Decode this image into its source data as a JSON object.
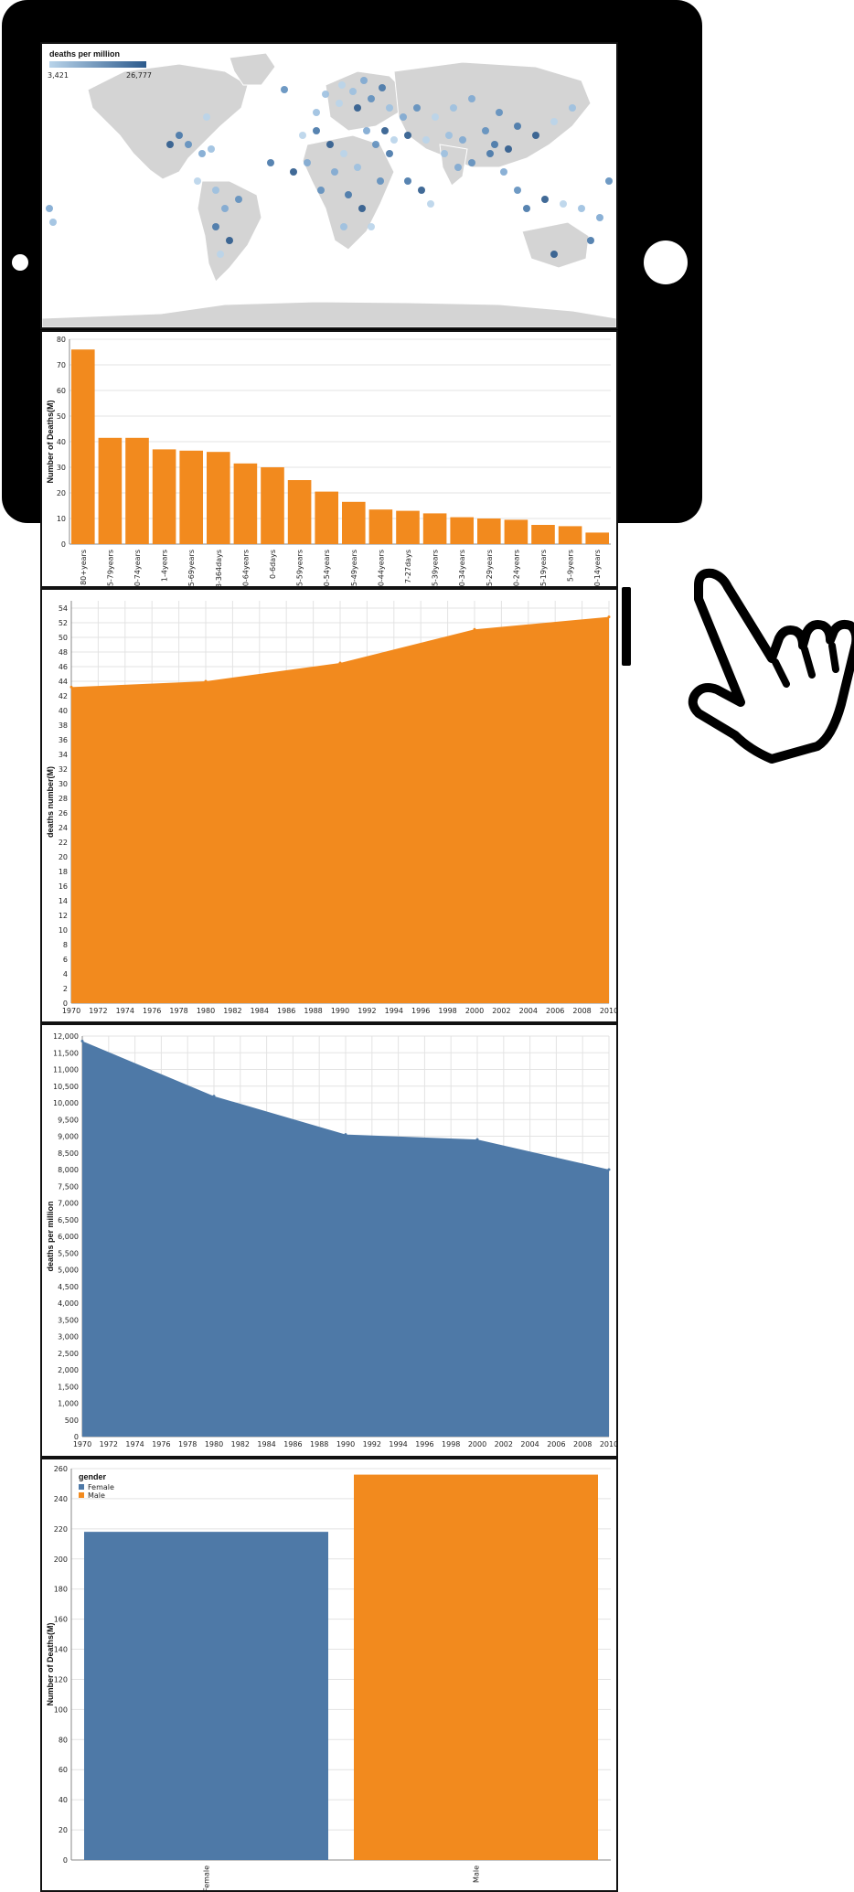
{
  "map": {
    "legend_title": "deaths per million",
    "legend_min": "3,421",
    "legend_max": "26,777",
    "colors": {
      "land": "#d4d4d4",
      "ocean": "#ffffff",
      "low": "#b9d4ea",
      "high": "#2c5a8c"
    }
  },
  "icons": {
    "device": "tablet-frame-icon",
    "pointer": "hand-pointer-icon"
  },
  "chart_data": [
    {
      "type": "bar",
      "ylabel": "Number of Deaths(M)",
      "xlabel": "",
      "ylim": [
        0,
        80
      ],
      "yticks": [
        0,
        10,
        20,
        30,
        40,
        50,
        60,
        70,
        80
      ],
      "categories": [
        "80+years",
        "75-79years",
        "70-74years",
        "1-4years",
        "65-69years",
        "28-364days",
        "60-64years",
        "0-6days",
        "55-59years",
        "50-54years",
        "45-49years",
        "40-44years",
        "7-27days",
        "35-39years",
        "30-34years",
        "25-29years",
        "20-24years",
        "15-19years",
        "5-9years",
        "10-14years"
      ],
      "values": [
        76,
        41.5,
        41.5,
        37,
        36.5,
        36,
        31.5,
        30,
        25,
        20.5,
        16.5,
        13.5,
        13,
        12,
        10.5,
        10,
        9.5,
        7.5,
        7,
        4.5
      ],
      "color": "#f28a1e",
      "grid": true
    },
    {
      "type": "area",
      "ylabel": "deaths number(M)",
      "xlabel": "",
      "ylim": [
        0,
        55
      ],
      "yticks": [
        0,
        2,
        4,
        6,
        8,
        10,
        12,
        14,
        16,
        18,
        20,
        22,
        24,
        26,
        28,
        30,
        32,
        34,
        36,
        38,
        40,
        42,
        44,
        46,
        48,
        50,
        52,
        54
      ],
      "xticks": [
        1970,
        1972,
        1974,
        1976,
        1978,
        1980,
        1982,
        1984,
        1986,
        1988,
        1990,
        1992,
        1994,
        1996,
        1998,
        2000,
        2002,
        2004,
        2006,
        2008,
        2010
      ],
      "x": [
        1970,
        1980,
        1990,
        2000,
        2010
      ],
      "y": [
        43.2,
        44,
        46.5,
        51.1,
        52.8
      ],
      "color": "#f28a1e",
      "grid": true
    },
    {
      "type": "area",
      "ylabel": "deaths per million",
      "xlabel": "",
      "ylim": [
        0,
        12000
      ],
      "yticks": [
        0,
        500,
        1000,
        1500,
        2000,
        2500,
        3000,
        3500,
        4000,
        4500,
        5000,
        5500,
        6000,
        6500,
        7000,
        7500,
        8000,
        8500,
        9000,
        9500,
        10000,
        10500,
        11000,
        11500,
        12000
      ],
      "ytick_labels": [
        "0",
        "500",
        "1,000",
        "1,500",
        "2,000",
        "2,500",
        "3,000",
        "3,500",
        "4,000",
        "4,500",
        "5,000",
        "5,500",
        "6,000",
        "6,500",
        "7,000",
        "7,500",
        "8,000",
        "8,500",
        "9,000",
        "9,500",
        "10,000",
        "10,500",
        "11,000",
        "11,500",
        "12,000"
      ],
      "xticks": [
        1970,
        1972,
        1974,
        1976,
        1978,
        1980,
        1982,
        1984,
        1986,
        1988,
        1990,
        1992,
        1994,
        1996,
        1998,
        2000,
        2002,
        2004,
        2006,
        2008,
        2010
      ],
      "x": [
        1970,
        1980,
        1990,
        2000,
        2010
      ],
      "y": [
        11850,
        10200,
        9050,
        8900,
        8000
      ],
      "color": "#4e79a7",
      "grid": true
    },
    {
      "type": "bar",
      "ylabel": "Number of Deaths(M)",
      "xlabel": "",
      "ylim": [
        0,
        260
      ],
      "yticks": [
        0,
        20,
        40,
        60,
        80,
        100,
        120,
        140,
        160,
        180,
        200,
        220,
        240,
        260
      ],
      "categories": [
        "Female",
        "Male"
      ],
      "values": [
        218,
        256
      ],
      "colors": [
        "#4e79a7",
        "#f28a1e"
      ],
      "legend": {
        "title": "gender",
        "entries": [
          "Female",
          "Male"
        ],
        "placement": "top-left"
      },
      "grid": true
    }
  ]
}
